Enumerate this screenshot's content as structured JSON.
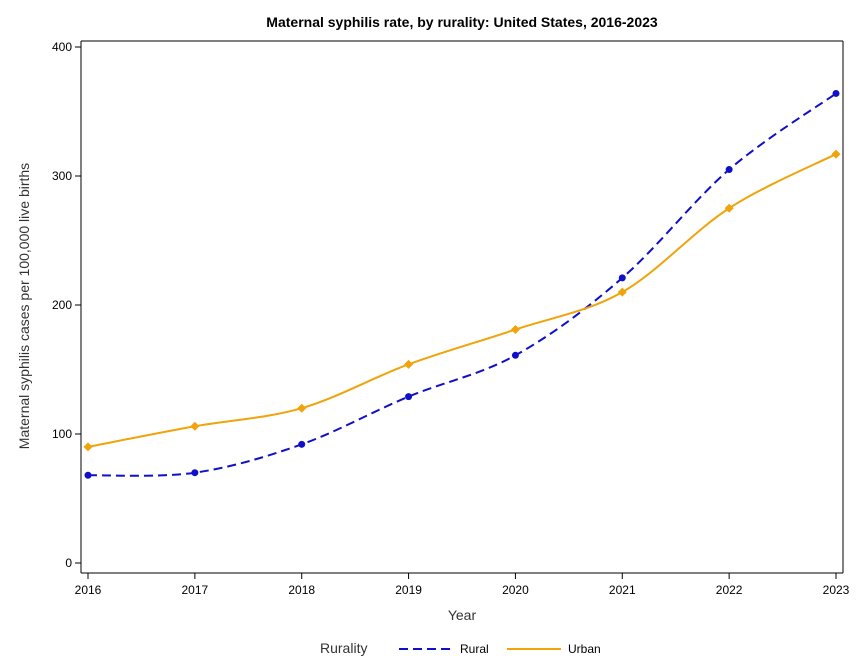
{
  "chart_data": {
    "type": "line",
    "title": "Maternal syphilis rate, by rurality: United States, 2016-2023",
    "xlabel": "Year",
    "ylabel": "Maternal syphilis cases per 100,000 live births",
    "x": [
      2016,
      2017,
      2018,
      2019,
      2020,
      2021,
      2022,
      2023
    ],
    "x_ticks": [
      "2016",
      "2017",
      "2018",
      "2019",
      "2020",
      "2021",
      "2022",
      "2023"
    ],
    "y_ticks": [
      "0",
      "100",
      "200",
      "300",
      "400"
    ],
    "xlim": [
      2016,
      2023
    ],
    "ylim": [
      0,
      400
    ],
    "grid": false,
    "legend_title": "Rurality",
    "legend_position": "bottom",
    "series": [
      {
        "name": "Rural",
        "values": [
          68,
          70,
          92,
          129,
          161,
          221,
          305,
          364
        ],
        "color": "#1010c8",
        "line_style": "dashed",
        "marker": "circle"
      },
      {
        "name": "Urban",
        "values": [
          90,
          106,
          120,
          154,
          181,
          210,
          275,
          317
        ],
        "color": "#f0a30a",
        "line_style": "solid",
        "marker": "diamond"
      }
    ]
  }
}
